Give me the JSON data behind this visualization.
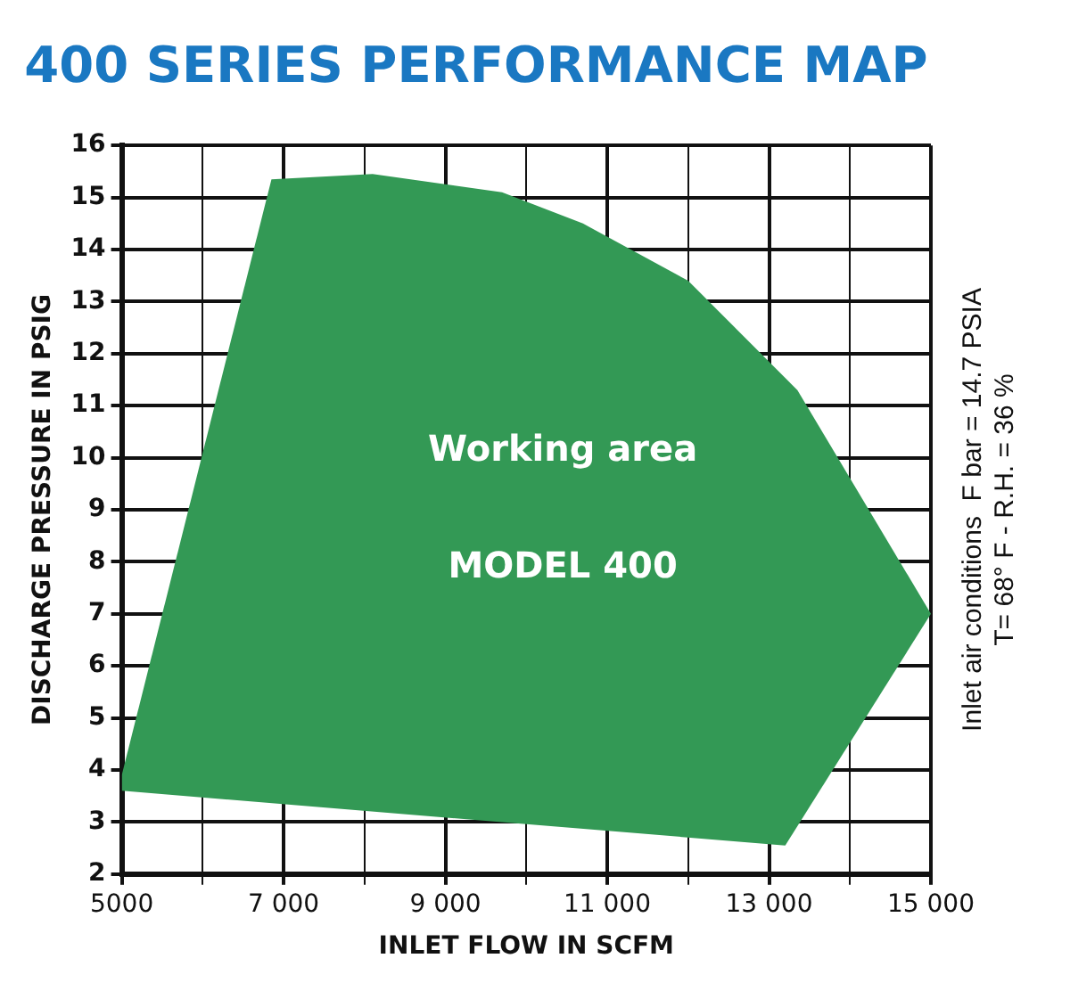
{
  "chart_data": {
    "type": "area",
    "title": "400 SERIES PERFORMANCE MAP",
    "xlabel": "INLET FLOW IN SCFM",
    "ylabel": "DISCHARGE PRESSURE IN PSIG",
    "annotations": [
      "Working area",
      "MODEL 400",
      "Inlet air conditions  F bar = 14.7 PSIA\nT= 68° F - R.H. = 36 %"
    ],
    "series": [
      {
        "color": "#339955",
        "x": [
          5000,
          6850,
          8100,
          9700,
          10700,
          12000,
          13350,
          15000,
          13200,
          5000,
          5000
        ],
        "values": [
          3.9,
          15.35,
          15.45,
          15.1,
          14.5,
          13.4,
          11.3,
          7.0,
          2.55,
          3.6,
          3.9
        ]
      }
    ],
    "xlim": [
      5000,
      15000
    ],
    "xticks": [
      {
        "value": 5000,
        "label": "5000"
      },
      {
        "value": 6000,
        "label": null
      },
      {
        "value": 7000,
        "label": "7 000"
      },
      {
        "value": 8000,
        "label": null
      },
      {
        "value": 9000,
        "label": "9 000"
      },
      {
        "value": 10000,
        "label": null
      },
      {
        "value": 11000,
        "label": "11 000"
      },
      {
        "value": 12000,
        "label": null
      },
      {
        "value": 13000,
        "label": "13 000"
      },
      {
        "value": 14000,
        "label": null
      },
      {
        "value": 15000,
        "label": "15 000"
      }
    ],
    "ylim": [
      2,
      16
    ],
    "yticks": [
      2,
      3,
      4,
      5,
      6,
      7,
      8,
      9,
      10,
      11,
      12,
      13,
      14,
      15,
      16
    ],
    "grid": true
  }
}
